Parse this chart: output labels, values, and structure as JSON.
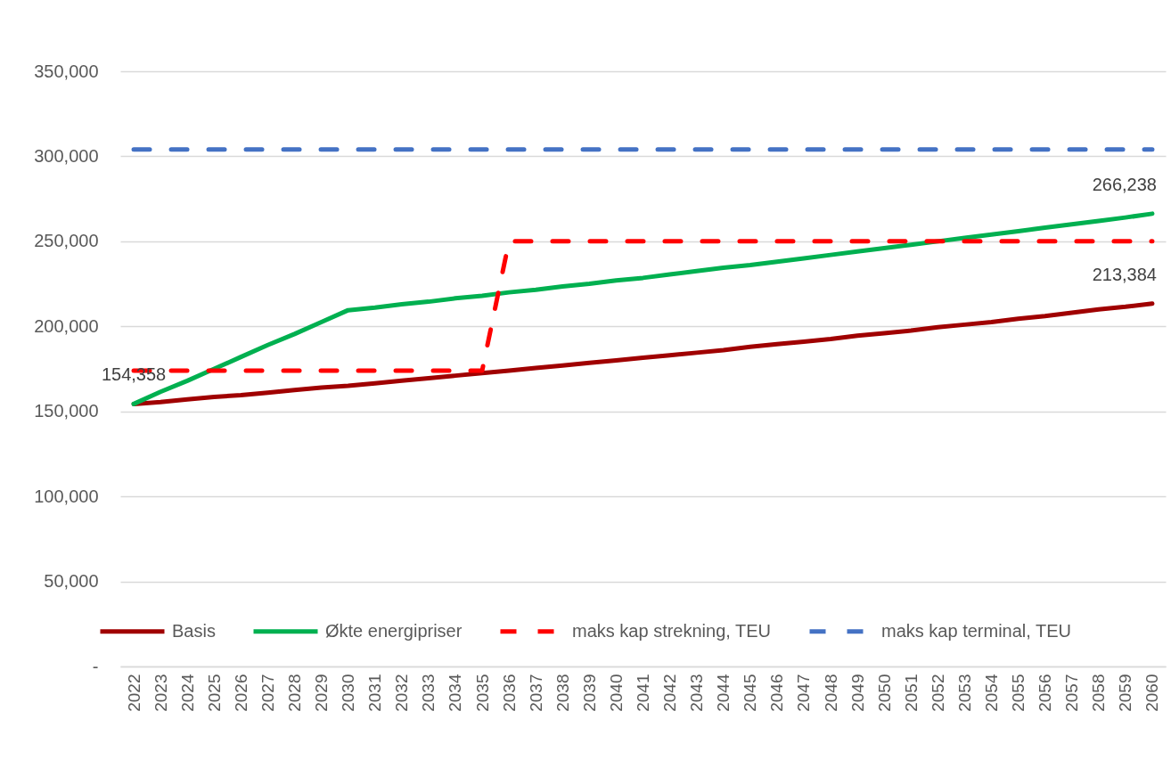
{
  "chart_data": {
    "type": "line",
    "categories": [
      "2022",
      "2023",
      "2024",
      "2025",
      "2026",
      "2027",
      "2028",
      "2029",
      "2030",
      "2031",
      "2032",
      "2033",
      "2034",
      "2035",
      "2036",
      "2037",
      "2038",
      "2039",
      "2040",
      "2041",
      "2042",
      "2043",
      "2044",
      "2045",
      "2046",
      "2047",
      "2048",
      "2049",
      "2050",
      "2051",
      "2052",
      "2053",
      "2054",
      "2055",
      "2056",
      "2057",
      "2058",
      "2059",
      "2060"
    ],
    "series": [
      {
        "name": "Basis",
        "color": "#a00000",
        "line_style": "solid",
        "values": [
          154358,
          155500,
          157000,
          158500,
          159500,
          161000,
          162500,
          164000,
          165000,
          166500,
          168000,
          169500,
          171000,
          172500,
          174000,
          175500,
          177000,
          178500,
          180000,
          181500,
          183000,
          184500,
          186000,
          188000,
          189500,
          191000,
          192500,
          194500,
          196000,
          197500,
          199500,
          201000,
          202500,
          204500,
          206000,
          208000,
          210000,
          211500,
          213384
        ],
        "value_labels": [
          "154,358",
          null,
          null,
          null,
          null,
          null,
          null,
          null,
          null,
          null,
          null,
          null,
          null,
          null,
          null,
          null,
          null,
          null,
          null,
          null,
          null,
          null,
          null,
          null,
          null,
          null,
          null,
          null,
          null,
          null,
          null,
          null,
          null,
          null,
          null,
          null,
          null,
          null,
          "213,384"
        ]
      },
      {
        "name": "Økte energipriser",
        "color": "#00b050",
        "line_style": "solid",
        "values": [
          154358,
          161500,
          168000,
          175000,
          182000,
          189000,
          195500,
          202500,
          209500,
          211000,
          213000,
          214500,
          216500,
          218000,
          220000,
          221500,
          223500,
          225000,
          227000,
          228500,
          230500,
          232500,
          234500,
          236000,
          238000,
          240000,
          242000,
          244000,
          246000,
          248000,
          250000,
          252000,
          254000,
          256000,
          258000,
          260000,
          262000,
          264000,
          266238
        ],
        "value_labels": [
          null,
          null,
          null,
          null,
          null,
          null,
          null,
          null,
          null,
          null,
          null,
          null,
          null,
          null,
          null,
          null,
          null,
          null,
          null,
          null,
          null,
          null,
          null,
          null,
          null,
          null,
          null,
          null,
          null,
          null,
          null,
          null,
          null,
          null,
          null,
          null,
          null,
          null,
          "266,238"
        ]
      },
      {
        "name": "maks kap strekning, TEU",
        "color": "#ff0000",
        "line_style": "dashed",
        "values": [
          174000,
          174000,
          174000,
          174000,
          174000,
          174000,
          174000,
          174000,
          174000,
          174000,
          174000,
          174000,
          174000,
          174000,
          250000,
          250000,
          250000,
          250000,
          250000,
          250000,
          250000,
          250000,
          250000,
          250000,
          250000,
          250000,
          250000,
          250000,
          250000,
          250000,
          250000,
          250000,
          250000,
          250000,
          250000,
          250000,
          250000,
          250000,
          250000
        ]
      },
      {
        "name": "maks kap terminal, TEU",
        "color": "#4472c4",
        "line_style": "dashed",
        "values": [
          304000,
          304000,
          304000,
          304000,
          304000,
          304000,
          304000,
          304000,
          304000,
          304000,
          304000,
          304000,
          304000,
          304000,
          304000,
          304000,
          304000,
          304000,
          304000,
          304000,
          304000,
          304000,
          304000,
          304000,
          304000,
          304000,
          304000,
          304000,
          304000,
          304000,
          304000,
          304000,
          304000,
          304000,
          304000,
          304000,
          304000,
          304000,
          304000
        ]
      }
    ],
    "ylim": [
      0,
      350000
    ],
    "yticks": [
      {
        "value": 0,
        "label": "-"
      },
      {
        "value": 50000,
        "label": "50,000"
      },
      {
        "value": 100000,
        "label": "100,000"
      },
      {
        "value": 150000,
        "label": "150,000"
      },
      {
        "value": 200000,
        "label": "200,000"
      },
      {
        "value": 250000,
        "label": "250,000"
      },
      {
        "value": 300000,
        "label": "300,000"
      },
      {
        "value": 350000,
        "label": "350,000"
      }
    ],
    "grid": "y",
    "legend": "bottom"
  }
}
